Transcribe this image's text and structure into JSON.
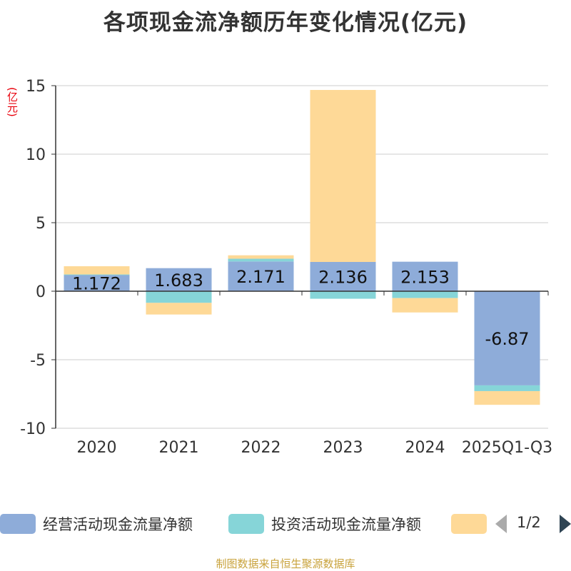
{
  "title": "各项现金流净额历年变化情况(亿元)",
  "unit_label": "(亿元)",
  "source": "制图数据来自恒生聚源数据库",
  "legend": {
    "items": [
      {
        "label": "经营活动现金流量净额",
        "color": "#8eacd9"
      },
      {
        "label": "投资活动现金流量净额",
        "color": "#86d5d8"
      },
      {
        "label": "",
        "color": "#fed997"
      }
    ],
    "page": "1/2"
  },
  "chart_data": {
    "type": "bar",
    "stacked": true,
    "categories": [
      "2020",
      "2021",
      "2022",
      "2023",
      "2024",
      "2025Q1-Q3"
    ],
    "ylim": [
      -10,
      15
    ],
    "yticks": [
      15,
      10,
      5,
      0,
      -5,
      -10
    ],
    "grid": true,
    "series": [
      {
        "name": "经营活动现金流量净额",
        "color": "#8eacd9",
        "values": [
          1.172,
          1.683,
          2.171,
          2.136,
          2.153,
          -6.87
        ],
        "labels": [
          "1.172",
          "1.683",
          "2.171",
          "2.136",
          "2.153",
          "-6.87"
        ]
      },
      {
        "name": "投资活动现金流量净额",
        "color": "#86d5d8",
        "values": [
          0.05,
          -0.85,
          0.2,
          -0.55,
          -0.5,
          -0.42
        ]
      },
      {
        "name": "",
        "color": "#fed997",
        "values": [
          0.6,
          -0.85,
          0.25,
          12.55,
          -1.05,
          -1.0
        ]
      }
    ]
  }
}
